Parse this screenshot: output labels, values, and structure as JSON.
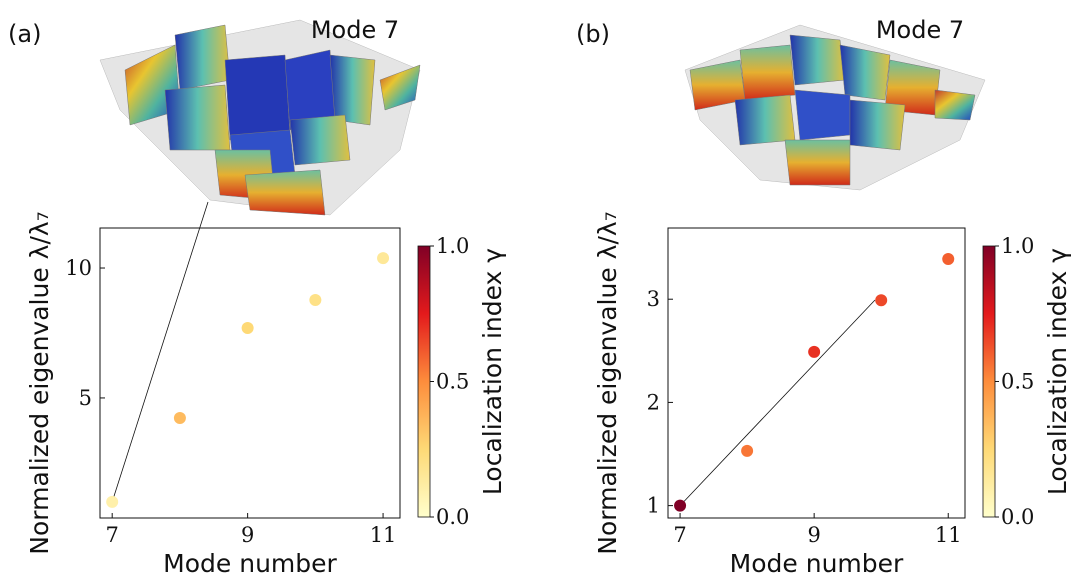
{
  "chart_data": [
    {
      "type": "scatter",
      "panel_label": "(a)",
      "annotation": "Mode 7",
      "xlabel": "Mode number",
      "ylabel": "Normalized eigenvalue λ/λ₇",
      "x": [
        7,
        8,
        9,
        10,
        11
      ],
      "values": [
        1.0,
        4.23,
        7.69,
        8.77,
        10.38
      ],
      "color_values": [
        0.1,
        0.35,
        0.25,
        0.2,
        0.15
      ],
      "xlim": [
        6.82,
        11.25
      ],
      "ylim": [
        0.38,
        11.54
      ],
      "xticks": [
        7,
        9,
        11
      ],
      "yticks": [
        5,
        10
      ],
      "colorbar_label": "Localization index γ",
      "clim": [
        0,
        1
      ],
      "colorbar_ticks": [
        {
          "value": 0,
          "label": "0.0"
        },
        0.5,
        {
          "value": 1,
          "label": "1.0"
        }
      ],
      "colormap": [
        "#ffffcc",
        "#fed976",
        "#fd8d3c",
        "#e31a1c",
        "#800026"
      ]
    },
    {
      "type": "scatter",
      "panel_label": "(b)",
      "annotation": "Mode 7",
      "xlabel": "Mode number",
      "ylabel": "Normalized eigenvalue λ/λ₇",
      "x": [
        7,
        8,
        9,
        10,
        11
      ],
      "values": [
        1.0,
        1.53,
        2.49,
        2.99,
        3.39
      ],
      "color_values": [
        1.0,
        0.55,
        0.7,
        0.65,
        0.6
      ],
      "xlim": [
        6.82,
        11.25
      ],
      "ylim": [
        0.88,
        3.69
      ],
      "xticks": [
        7,
        9,
        11
      ],
      "yticks": [
        1,
        2,
        3
      ],
      "colorbar_label": "Localization index γ",
      "clim": [
        0,
        1
      ],
      "colorbar_ticks": [
        {
          "value": 0,
          "label": "0.0"
        },
        0.5,
        {
          "value": 1,
          "label": "1.0"
        }
      ],
      "colormap": [
        "#ffffcc",
        "#fed976",
        "#fd8d3c",
        "#e31a1c",
        "#800026"
      ]
    }
  ]
}
